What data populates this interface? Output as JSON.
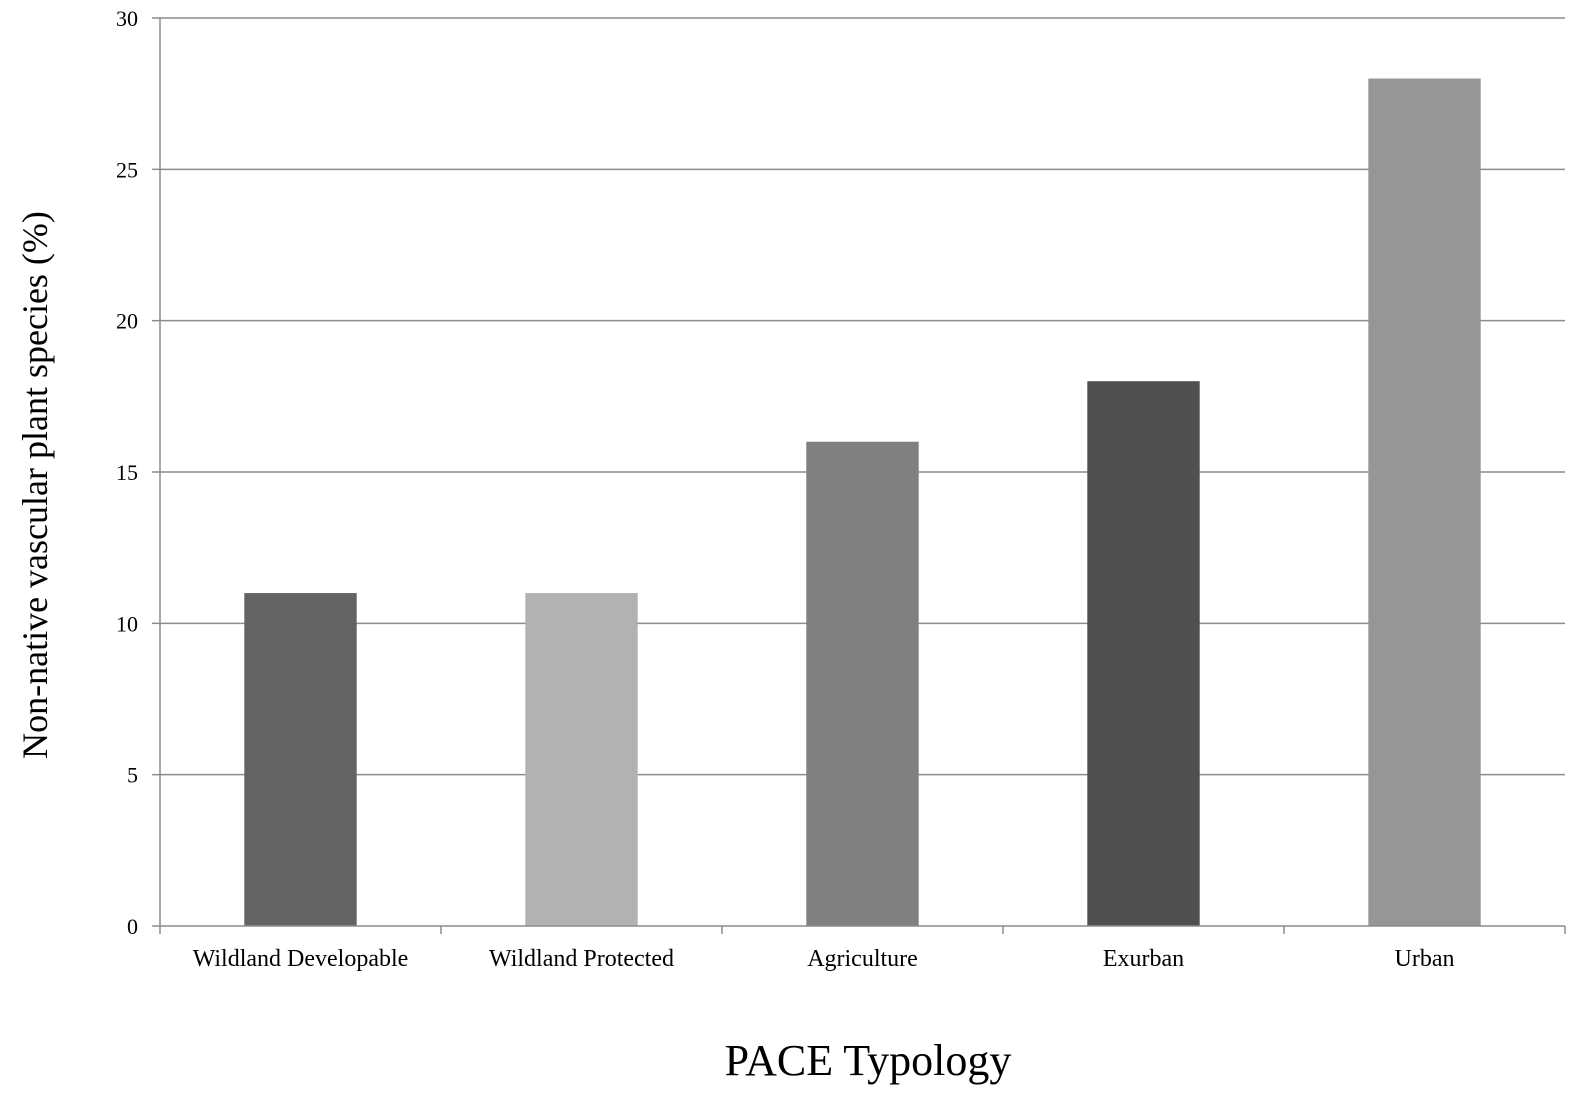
{
  "chart_data": {
    "type": "bar",
    "categories": [
      "Wildland Developable",
      "Wildland Protected",
      "Agriculture",
      "Exurban",
      "Urban"
    ],
    "values": [
      11,
      11,
      16,
      18,
      28
    ],
    "bar_colors": [
      "#636363",
      "#b2b2b2",
      "#808080",
      "#505050",
      "#969696"
    ],
    "xlabel": "PACE Typology",
    "ylabel": "Non-native vascular plant species (%)",
    "ylim": [
      0,
      30
    ],
    "yticks": [
      0,
      5,
      10,
      15,
      20,
      25,
      30
    ],
    "grid": true,
    "legend": "none"
  }
}
